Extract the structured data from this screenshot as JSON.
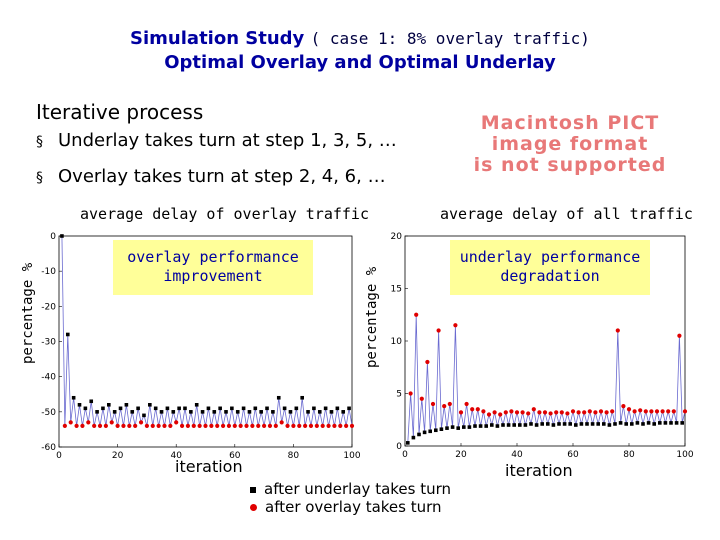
{
  "title": {
    "main": "Simulation Study",
    "case": "( case 1: 8% overlay traffic)",
    "subtitle": "Optimal Overlay and Optimal Underlay"
  },
  "body": {
    "heading": "Iterative process",
    "bullets": [
      "Underlay takes turn at step 1, 3, 5, …",
      "Overlay takes turn at step 2, 4, 6, …"
    ]
  },
  "pict": {
    "line1": "Macintosh PICT",
    "line2": "image format",
    "line3": "is not supported"
  },
  "left_chart": {
    "title": "average delay of overlay traffic",
    "ylabel": "percentage %",
    "xlabel": "iteration",
    "note": "overlay performance improvement"
  },
  "right_chart": {
    "title": "average delay of all traffic",
    "ylabel": "percentage %",
    "xlabel": "iteration",
    "note": "underlay performance degradation"
  },
  "legend": {
    "underlay": "after underlay takes turn",
    "overlay": "after overlay takes turn"
  },
  "colors": {
    "title": "#0000a0",
    "underlay_marker": "#000000",
    "overlay_marker": "#e00000",
    "line": "#6a6ad0",
    "note_bg": "#ffff99"
  },
  "chart_data": [
    {
      "type": "line",
      "title": "average delay of overlay traffic",
      "xlabel": "iteration",
      "ylabel": "percentage %",
      "xlim": [
        0,
        100
      ],
      "ylim": [
        -60,
        0
      ],
      "xticks": [
        0,
        20,
        40,
        60,
        80,
        100
      ],
      "yticks": [
        0,
        -10,
        -20,
        -30,
        -40,
        -50,
        -60
      ],
      "series": [
        {
          "name": "after underlay takes turn",
          "x": [
            1,
            3,
            5,
            7,
            9,
            11,
            13,
            15,
            17,
            19,
            21,
            23,
            25,
            27,
            29,
            31,
            33,
            35,
            37,
            39,
            41,
            43,
            45,
            47,
            49,
            51,
            53,
            55,
            57,
            59,
            61,
            63,
            65,
            67,
            69,
            71,
            73,
            75,
            77,
            79,
            81,
            83,
            85,
            87,
            89,
            91,
            93,
            95,
            97,
            99
          ],
          "values": [
            0,
            -28,
            -46,
            -48,
            -49,
            -47,
            -50,
            -49,
            -48,
            -50,
            -49,
            -48,
            -50,
            -49,
            -51,
            -48,
            -49,
            -50,
            -49,
            -50,
            -49,
            -49,
            -50,
            -48,
            -50,
            -49,
            -50,
            -49,
            -50,
            -49,
            -50,
            -49,
            -50,
            -49,
            -50,
            -49,
            -50,
            -46,
            -49,
            -50,
            -49,
            -46,
            -50,
            -49,
            -50,
            -49,
            -50,
            -49,
            -50,
            -49
          ]
        },
        {
          "name": "after overlay takes turn",
          "x": [
            2,
            4,
            6,
            8,
            10,
            12,
            14,
            16,
            18,
            20,
            22,
            24,
            26,
            28,
            30,
            32,
            34,
            36,
            38,
            40,
            42,
            44,
            46,
            48,
            50,
            52,
            54,
            56,
            58,
            60,
            62,
            64,
            66,
            68,
            70,
            72,
            74,
            76,
            78,
            80,
            82,
            84,
            86,
            88,
            90,
            92,
            94,
            96,
            98,
            100
          ],
          "values": [
            -54,
            -53,
            -54,
            -54,
            -53,
            -54,
            -54,
            -54,
            -53,
            -54,
            -54,
            -54,
            -54,
            -53,
            -54,
            -54,
            -54,
            -54,
            -54,
            -53,
            -54,
            -54,
            -54,
            -54,
            -54,
            -54,
            -54,
            -54,
            -54,
            -54,
            -54,
            -54,
            -54,
            -54,
            -54,
            -54,
            -54,
            -53,
            -54,
            -54,
            -54,
            -54,
            -54,
            -54,
            -54,
            -54,
            -54,
            -54,
            -54,
            -54
          ]
        }
      ]
    },
    {
      "type": "line",
      "title": "average delay of all traffic",
      "xlabel": "iteration",
      "ylabel": "percentage %",
      "xlim": [
        0,
        100
      ],
      "ylim": [
        0,
        20
      ],
      "xticks": [
        0,
        20,
        40,
        60,
        80,
        100
      ],
      "yticks": [
        0,
        5,
        10,
        15,
        20
      ],
      "series": [
        {
          "name": "after underlay takes turn",
          "x": [
            1,
            3,
            5,
            7,
            9,
            11,
            13,
            15,
            17,
            19,
            21,
            23,
            25,
            27,
            29,
            31,
            33,
            35,
            37,
            39,
            41,
            43,
            45,
            47,
            49,
            51,
            53,
            55,
            57,
            59,
            61,
            63,
            65,
            67,
            69,
            71,
            73,
            75,
            77,
            79,
            81,
            83,
            85,
            87,
            89,
            91,
            93,
            95,
            97,
            99
          ],
          "values": [
            0.3,
            0.8,
            1.1,
            1.3,
            1.4,
            1.5,
            1.6,
            1.7,
            1.8,
            1.7,
            1.8,
            1.8,
            1.9,
            1.9,
            1.9,
            2.0,
            1.9,
            2.0,
            2.0,
            2.0,
            2.0,
            2.0,
            2.1,
            2.0,
            2.1,
            2.1,
            2.0,
            2.1,
            2.1,
            2.1,
            2.0,
            2.1,
            2.1,
            2.1,
            2.1,
            2.1,
            2.0,
            2.1,
            2.2,
            2.1,
            2.1,
            2.2,
            2.1,
            2.2,
            2.1,
            2.2,
            2.2,
            2.2,
            2.2,
            2.2
          ]
        },
        {
          "name": "after overlay takes turn",
          "x": [
            2,
            4,
            6,
            8,
            10,
            12,
            14,
            16,
            18,
            20,
            22,
            24,
            26,
            28,
            30,
            32,
            34,
            36,
            38,
            40,
            42,
            44,
            46,
            48,
            50,
            52,
            54,
            56,
            58,
            60,
            62,
            64,
            66,
            68,
            70,
            72,
            74,
            76,
            78,
            80,
            82,
            84,
            86,
            88,
            90,
            92,
            94,
            96,
            98,
            100
          ],
          "values": [
            5,
            12.5,
            4.5,
            8,
            4,
            11,
            3.8,
            4,
            11.5,
            3.2,
            4,
            3.5,
            3.5,
            3.3,
            3.0,
            3.2,
            3.0,
            3.2,
            3.3,
            3.2,
            3.2,
            3.1,
            3.5,
            3.2,
            3.2,
            3.1,
            3.2,
            3.2,
            3.1,
            3.3,
            3.2,
            3.2,
            3.3,
            3.2,
            3.3,
            3.2,
            3.3,
            11,
            3.8,
            3.5,
            3.3,
            3.4,
            3.3,
            3.3,
            3.3,
            3.3,
            3.3,
            3.3,
            10.5,
            3.3
          ]
        }
      ]
    }
  ]
}
